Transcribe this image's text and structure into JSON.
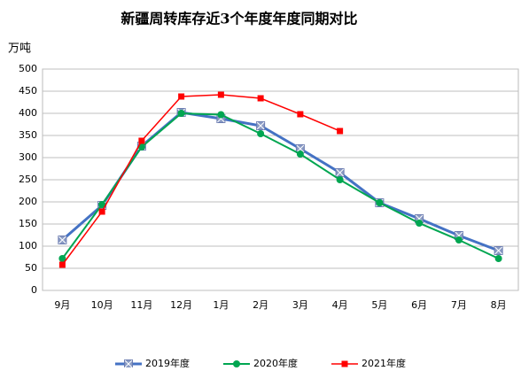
{
  "chart_data": {
    "type": "line",
    "title": "新疆周转库存近3个年度年度同期对比",
    "y_label": "万吨",
    "categories": [
      "9月",
      "10月",
      "11月",
      "12月",
      "1月",
      "2月",
      "3月",
      "4月",
      "5月",
      "6月",
      "7月",
      "8月"
    ],
    "series": [
      {
        "name": "2019年度",
        "color": "#4472c4",
        "values": [
          114,
          192,
          326,
          402,
          388,
          372,
          320,
          266,
          198,
          162,
          124,
          90
        ]
      },
      {
        "name": "2020年度",
        "color": "#00a651",
        "values": [
          72,
          194,
          324,
          400,
          397,
          354,
          308,
          250,
          198,
          152,
          114,
          72
        ]
      },
      {
        "name": "2021年度",
        "color": "#ff0000",
        "values": [
          58,
          178,
          338,
          438,
          442,
          434,
          398,
          360,
          null,
          null,
          null,
          null
        ]
      }
    ],
    "ylim": [
      0,
      500
    ],
    "yticks": [
      0,
      50,
      100,
      150,
      200,
      250,
      300,
      350,
      400,
      450,
      500
    ],
    "grid": true,
    "legend": "bottom"
  }
}
